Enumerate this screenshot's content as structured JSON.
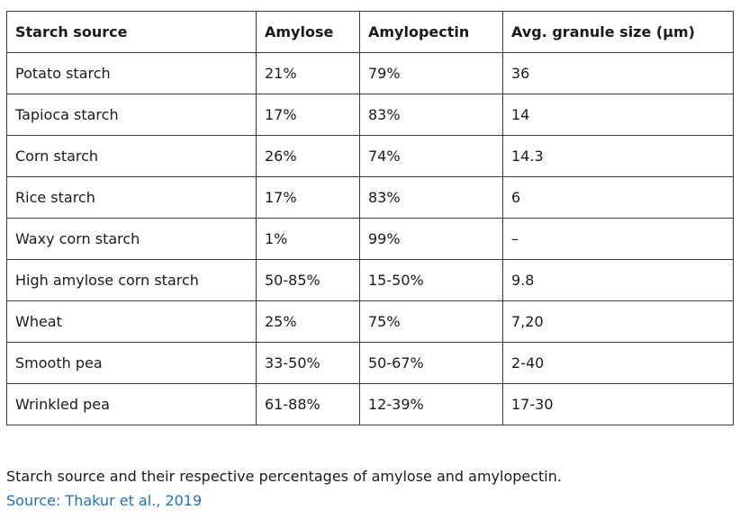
{
  "table": {
    "headers": [
      "Starch source",
      "Amylose",
      "Amylopectin",
      "Avg. granule size (µm)"
    ],
    "rows": [
      [
        "Potato starch",
        "21%",
        "79%",
        "36"
      ],
      [
        "Tapioca starch",
        "17%",
        "83%",
        "14"
      ],
      [
        "Corn starch",
        "26%",
        "74%",
        "14.3"
      ],
      [
        "Rice starch",
        "17%",
        "83%",
        "6"
      ],
      [
        "Waxy corn starch",
        "1%",
        "99%",
        "–"
      ],
      [
        "High amylose corn starch",
        "50-85%",
        "15-50%",
        "9.8"
      ],
      [
        "Wheat",
        "25%",
        "75%",
        "7,20"
      ],
      [
        "Smooth pea",
        "33-50%",
        "50-67%",
        "2-40"
      ],
      [
        "Wrinkled pea",
        "61-88%",
        "12-39%",
        "17-30"
      ]
    ]
  },
  "caption": {
    "text": "Starch source and their respective percentages of amylose and amylopectin.",
    "source_link": "Source: Thakur et al., 2019"
  },
  "colors": {
    "link": "#1a73c7",
    "border": "#3a3a3a",
    "text": "#1a1a1a"
  }
}
